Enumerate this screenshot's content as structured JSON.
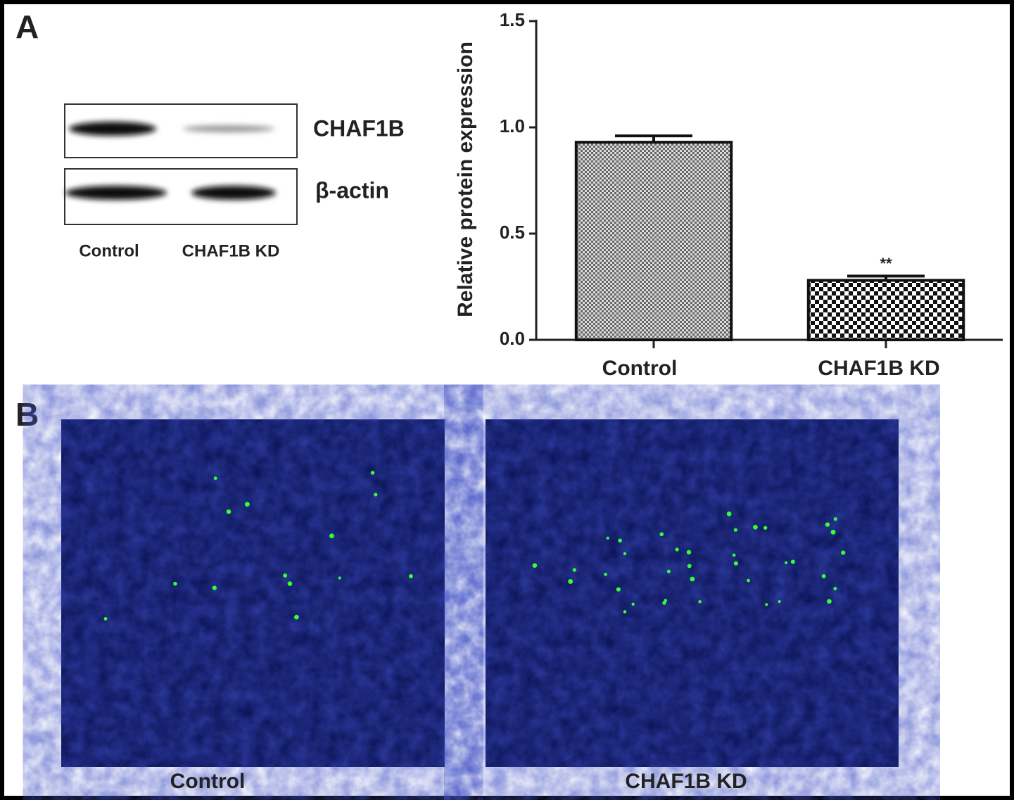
{
  "panel_a": {
    "label": "A",
    "blot": {
      "bands": [
        "CHAF1B",
        "β-actin"
      ],
      "lanes": [
        "Control",
        "CHAF1B KD"
      ]
    }
  },
  "chart_data": {
    "type": "bar",
    "y_label": "Relative protein expression",
    "categories": [
      "Control",
      "CHAF1B KD"
    ],
    "values": [
      0.93,
      0.28
    ],
    "errors": [
      0.03,
      0.02
    ],
    "value_annotations": [
      null,
      "**"
    ],
    "ylim": [
      0,
      1.5
    ],
    "yticks": [
      {
        "value": 0,
        "label": "0.0"
      },
      {
        "value": 0.5,
        "label": "0.5"
      },
      {
        "value": 1,
        "label": "1.0"
      },
      {
        "value": 1.5,
        "label": "1.5"
      }
    ]
  },
  "panel_b": {
    "label": "B",
    "images": [
      "Control",
      "CHAF1B KD"
    ]
  }
}
